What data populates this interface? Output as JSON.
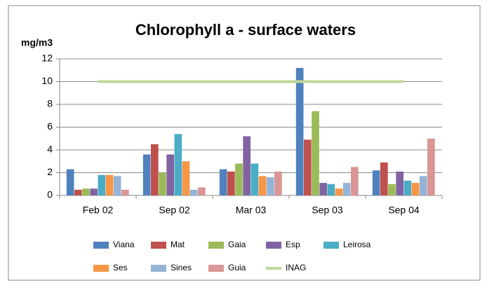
{
  "chart_data": {
    "type": "bar",
    "title": "Chlorophyll a - surface waters",
    "y_label": "mg/m3",
    "categories": [
      "Feb 02",
      "Sep 02",
      "Mar 03",
      "Sep 03",
      "Sep 04"
    ],
    "ylim": [
      0,
      12
    ],
    "yticks": [
      0,
      2,
      4,
      6,
      8,
      10,
      12
    ],
    "grid": true,
    "series": [
      {
        "name": "Viana",
        "color": "#4f81bd",
        "values": [
          2.3,
          3.6,
          2.3,
          11.2,
          2.2
        ]
      },
      {
        "name": "Mat",
        "color": "#c0504d",
        "values": [
          0.5,
          4.5,
          2.1,
          4.9,
          2.9
        ]
      },
      {
        "name": "Gaia",
        "color": "#9bbb59",
        "values": [
          0.6,
          2.0,
          2.8,
          7.4,
          1.0
        ]
      },
      {
        "name": "Esp",
        "color": "#8064a2",
        "values": [
          0.6,
          3.6,
          5.2,
          1.1,
          2.1
        ]
      },
      {
        "name": "Leirosa",
        "color": "#4bacc6",
        "values": [
          1.8,
          5.4,
          2.8,
          1.0,
          1.3
        ]
      },
      {
        "name": "Ses",
        "color": "#f79646",
        "values": [
          1.8,
          3.0,
          1.7,
          0.6,
          1.1
        ]
      },
      {
        "name": "Sines",
        "color": "#95b3d7",
        "values": [
          1.7,
          0.5,
          1.6,
          1.1,
          1.7
        ]
      },
      {
        "name": "Guia",
        "color": "#d99694",
        "values": [
          0.5,
          0.7,
          2.1,
          2.5,
          5.0
        ]
      },
      {
        "name": "INAG",
        "color": "#c3d69b",
        "type": "line",
        "values": [
          10,
          10,
          10,
          10,
          10
        ]
      }
    ]
  }
}
